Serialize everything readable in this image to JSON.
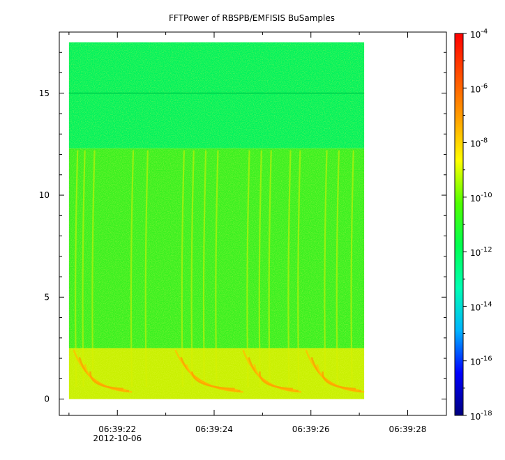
{
  "chart_data": {
    "type": "heatmap",
    "title": "FFTPower of RBSPB/EMFISIS  BuSamples",
    "xlabel": "",
    "ylabel": "",
    "x_ticks": [
      "06:39:22",
      "06:39:24",
      "06:39:26",
      "06:39:28"
    ],
    "x_date_label": "2012-10-06",
    "x_range_seconds": [
      20.8,
      28.8
    ],
    "data_x_range_seconds": [
      21.0,
      27.1
    ],
    "y_ticks": [
      0,
      5,
      10,
      15
    ],
    "ylim": [
      -0.8,
      18.0
    ],
    "data_y_range": [
      0,
      17.5
    ],
    "colorbar": {
      "scale": "log",
      "range": [
        1e-18,
        0.0001
      ],
      "tick_bases": [
        "10",
        "10",
        "10",
        "10",
        "10",
        "10",
        "10",
        "10"
      ],
      "tick_exponents": [
        "-4",
        "-6",
        "-8",
        "-10",
        "-12",
        "-14",
        "-16",
        "-18"
      ],
      "tick_values": [
        -4,
        -6,
        -8,
        -10,
        -12,
        -14,
        -16,
        -18
      ],
      "colors": [
        "#00007f",
        "#0000ff",
        "#00b4ff",
        "#00ffb4",
        "#00ff50",
        "#50ff00",
        "#ffff00",
        "#ffa000",
        "#ff5000",
        "#ff0000"
      ]
    },
    "bands": [
      {
        "y_from": 12.3,
        "y_to": 17.5,
        "color": "#00f25c",
        "level_log": -11.5
      },
      {
        "y_from": 2.5,
        "y_to": 12.3,
        "color": "#38f020",
        "level_log": -10.5
      },
      {
        "y_from": 0,
        "y_to": 2.5,
        "color": "#c8f000",
        "level_log": -9.0
      }
    ],
    "line_y": 15.0,
    "line_color": "#00d850",
    "chorus_bursts": [
      {
        "t_start": 21.1,
        "t_end": 22.3
      },
      {
        "t_start": 23.2,
        "t_end": 24.6
      },
      {
        "t_start": 24.6,
        "t_end": 25.8
      },
      {
        "t_start": 25.9,
        "t_end": 27.1
      }
    ],
    "streak_times": [
      21.15,
      21.3,
      21.5,
      22.3,
      22.6,
      23.35,
      23.55,
      23.8,
      24.05,
      24.7,
      24.95,
      25.15,
      25.55,
      25.75,
      26.3,
      26.55,
      26.85
    ]
  }
}
